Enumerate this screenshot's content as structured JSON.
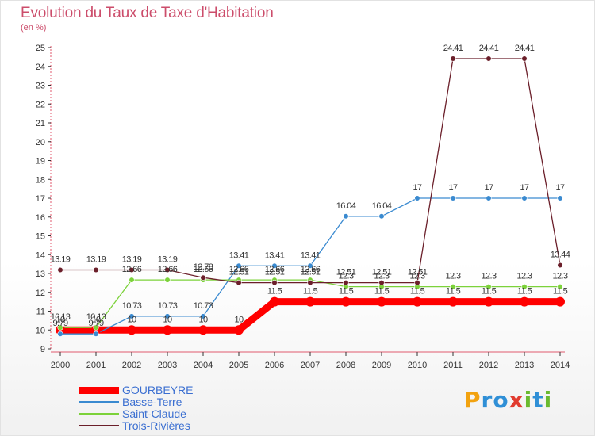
{
  "title": "Evolution du Taux de Taxe d'Habitation",
  "unit_label": "(en %)",
  "brand": {
    "text": "Proxiti",
    "letter_colors": [
      "#f2a20f",
      "#2f8fd6",
      "#2f8fd6",
      "#e13b2f",
      "#6aba2f",
      "#2f8fd6",
      "#6aba2f"
    ]
  },
  "chart_data": {
    "type": "line",
    "x": [
      "2000",
      "2001",
      "2002",
      "2003",
      "2004",
      "2005",
      "2006",
      "2007",
      "2008",
      "2009",
      "2010",
      "2011",
      "2012",
      "2013",
      "2014"
    ],
    "ylim": [
      9,
      25
    ],
    "yticks": [
      "9",
      "10",
      "11",
      "12",
      "13",
      "14",
      "15",
      "16",
      "17",
      "18",
      "19",
      "20",
      "21",
      "22",
      "23",
      "24",
      "25"
    ],
    "grid": false,
    "legend_position": "bottom-left",
    "series": [
      {
        "name": "GOURBEYRE",
        "color": "#ff0000",
        "emphasis": true,
        "values": [
          10,
          10,
          10,
          10,
          10,
          10,
          11.5,
          11.5,
          11.5,
          11.5,
          11.5,
          11.5,
          11.5,
          11.5,
          11.5
        ],
        "labels": [
          "10",
          "10",
          "10",
          "10",
          "10",
          "10",
          "11.5",
          "11.5",
          "11.5",
          "11.5",
          "11.5",
          "11.5",
          "11.5",
          "11.5",
          "11.5"
        ]
      },
      {
        "name": "Basse-Terre",
        "color": "#3a8ad0",
        "values": [
          9.79,
          9.79,
          10.73,
          10.73,
          10.73,
          13.41,
          13.41,
          13.41,
          16.04,
          16.04,
          17,
          17,
          17,
          17,
          17
        ],
        "labels": [
          "9.79",
          "9.79",
          "10.73",
          "10.73",
          "10.73",
          "13.41",
          "13.41",
          "13.41",
          "16.04",
          "16.04",
          "17",
          "17",
          "17",
          "17",
          "17"
        ]
      },
      {
        "name": "Saint-Claude",
        "color": "#7cd23a",
        "values": [
          10.13,
          10.13,
          12.66,
          12.66,
          12.66,
          12.66,
          12.66,
          12.66,
          12.3,
          12.3,
          12.3,
          12.3,
          12.3,
          12.3,
          12.3
        ],
        "labels": [
          "10.13",
          "10.13",
          "12.66",
          "12.66",
          "12.66",
          "12.66",
          "12.66",
          "12.66",
          "12.3",
          "12.3",
          "12.3",
          "12.3",
          "12.3",
          "12.3",
          "12.3"
        ]
      },
      {
        "name": "Trois-Rivières",
        "color": "#6b1f2a",
        "values": [
          13.19,
          13.19,
          13.19,
          13.19,
          12.78,
          12.51,
          12.51,
          12.51,
          12.51,
          12.51,
          12.51,
          24.41,
          24.41,
          24.41,
          13.44
        ],
        "labels": [
          "13.19",
          "13.19",
          "13.19",
          "13.19",
          "12.78",
          "12.51",
          "12.51",
          "12.51",
          "12.51",
          "12.51",
          "12.51",
          "24.41",
          "24.41",
          "24.41",
          "13.44"
        ]
      }
    ]
  }
}
